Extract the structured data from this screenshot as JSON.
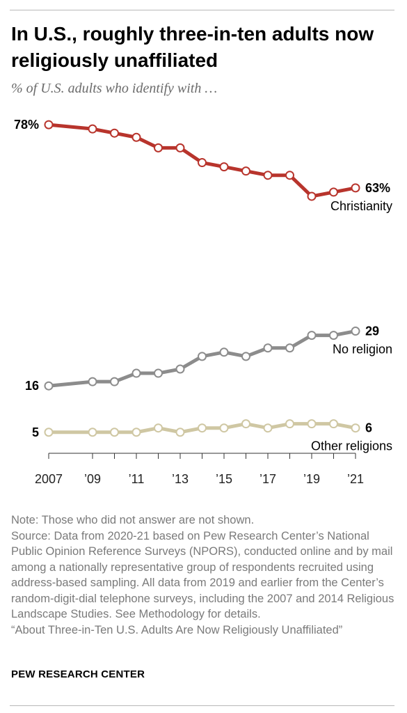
{
  "header": {
    "title": "In U.S., roughly three-in-ten adults now religiously unaffiliated",
    "subtitle": "% of U.S. adults who identify with …"
  },
  "footer": {
    "note": "Note: Those who did not answer are not shown.",
    "source": "Source: Data from 2020-21 based on Pew Research Center’s National Public Opinion Reference Surveys (NPORS), conducted online and by mail among a nationally representative group of respondents recruited using address-based sampling. All data from 2019 and earlier from the Center’s random-digit-dial telephone surveys, including the 2007 and 2014 Religious Landscape Studies. See Methodology for details.",
    "report": "“About Three-in-Ten U.S. Adults Are Now Religiously Unaffiliated”",
    "brand": "PEW RESEARCH CENTER"
  },
  "chart_data": {
    "type": "line",
    "x": [
      2007,
      2009,
      2010,
      2011,
      2012,
      2013,
      2014,
      2015,
      2016,
      2017,
      2018,
      2019,
      2020,
      2021
    ],
    "x_tick_values": [
      2007,
      2009,
      2011,
      2013,
      2015,
      2017,
      2019,
      2021
    ],
    "x_tick_labels": [
      "2007",
      "’09",
      "’11",
      "’13",
      "’15",
      "’17",
      "’19",
      "’21"
    ],
    "ylim": [
      0,
      80
    ],
    "grid": false,
    "legend": "direct labels at line ends",
    "series": [
      {
        "name": "Christianity",
        "color": "#b8342c",
        "values": [
          78,
          77,
          76,
          75,
          72.5,
          72.5,
          69,
          68,
          67,
          66,
          66,
          61,
          62,
          63
        ],
        "start_label": "78%",
        "end_label": "63%"
      },
      {
        "name": "No religion",
        "color": "#8c8c8c",
        "values": [
          16,
          17,
          17,
          19,
          19,
          20,
          23,
          24,
          23,
          25,
          25,
          28,
          28,
          29
        ],
        "start_label": "16",
        "end_label": "29"
      },
      {
        "name": "Other religions",
        "color": "#cfc7a3",
        "values": [
          5,
          5,
          5,
          5,
          6,
          5,
          6,
          6,
          7,
          6,
          7,
          7,
          7,
          6
        ],
        "start_label": "5",
        "end_label": "6"
      }
    ]
  }
}
